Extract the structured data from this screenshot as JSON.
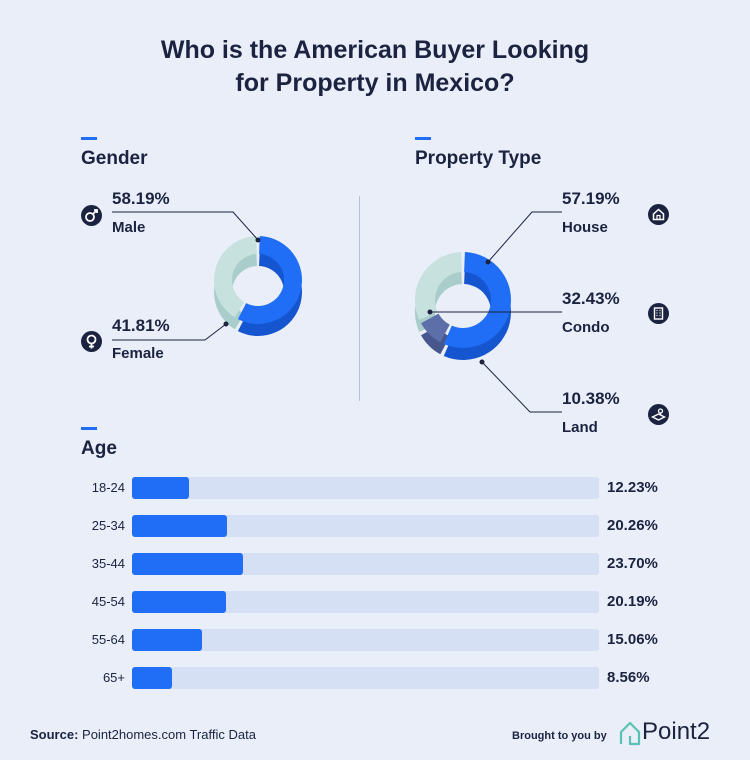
{
  "title_line1": "Who is the American Buyer Looking",
  "title_line2": "for Property in Mexico?",
  "colors": {
    "blue": "#1f6ef5",
    "blue_dark": "#1555d0",
    "teal_light": "#c7e1df",
    "teal_dark": "#a9cdca",
    "slate": "#5d6fa8",
    "navy": "#1b2340",
    "track": "#d6e0f5",
    "background": "#e9eef8"
  },
  "gender": {
    "heading": "Gender",
    "male": {
      "pct": "58.19%",
      "label": "Male",
      "icon": "male-icon"
    },
    "female": {
      "pct": "41.81%",
      "label": "Female",
      "icon": "female-icon"
    }
  },
  "property": {
    "heading": "Property Type",
    "house": {
      "pct": "57.19%",
      "label": "House",
      "icon": "house-icon"
    },
    "condo": {
      "pct": "32.43%",
      "label": "Condo",
      "icon": "building-icon"
    },
    "land": {
      "pct": "10.38%",
      "label": "Land",
      "icon": "land-icon"
    }
  },
  "age": {
    "heading": "Age"
  },
  "footer": {
    "source_label": "Source:",
    "source_text": "Point2homes.com Traffic Data",
    "brand_text": "Brought to you by",
    "logo_text": "Point2"
  },
  "chart_data": [
    {
      "type": "pie",
      "title": "Gender",
      "categories": [
        "Male",
        "Female"
      ],
      "values": [
        58.19,
        41.81
      ]
    },
    {
      "type": "pie",
      "title": "Property Type",
      "categories": [
        "House",
        "Condo",
        "Land"
      ],
      "values": [
        57.19,
        32.43,
        10.38
      ]
    },
    {
      "type": "bar",
      "title": "Age",
      "orientation": "horizontal",
      "categories": [
        "18-24",
        "25-34",
        "35-44",
        "45-54",
        "55-64",
        "65+"
      ],
      "values": [
        12.23,
        20.26,
        23.7,
        20.19,
        15.06,
        8.56
      ],
      "value_labels": [
        "12.23%",
        "20.26%",
        "23.70%",
        "20.19%",
        "15.06%",
        "8.56%"
      ],
      "xlim": [
        0,
        100
      ]
    }
  ]
}
